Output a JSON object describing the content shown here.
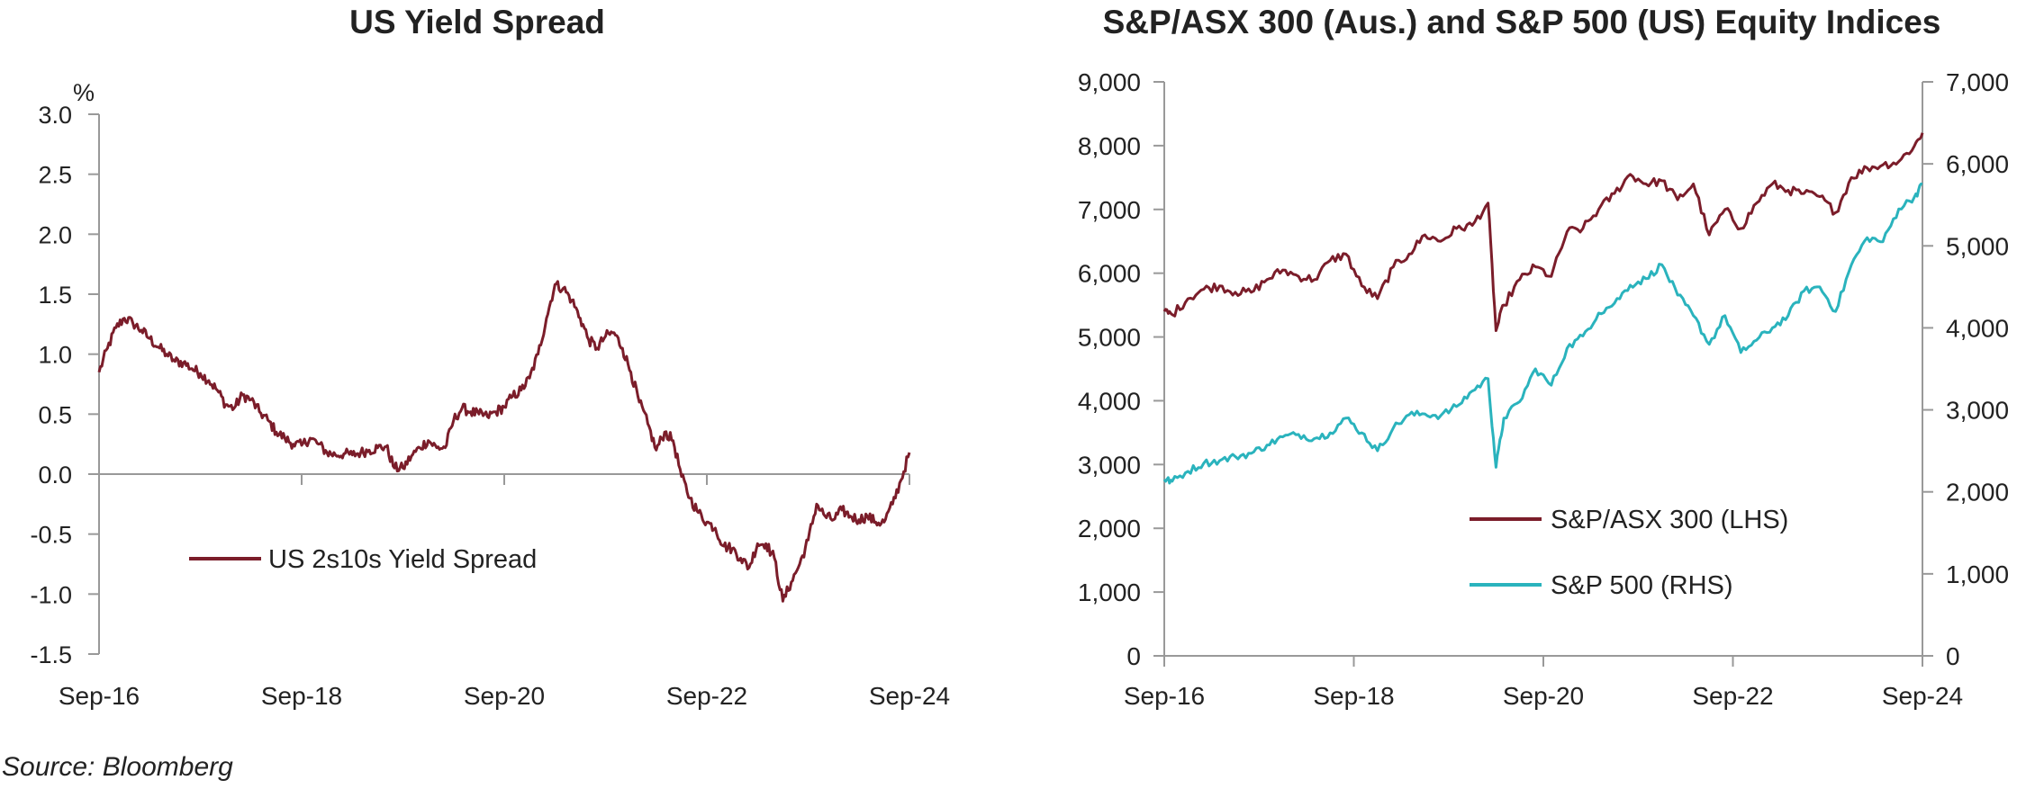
{
  "source": "Source: Bloomberg",
  "chart_data": [
    {
      "type": "line",
      "title": "US Yield Spread",
      "unit_label": "%",
      "xlabel": "",
      "ylabel": "",
      "x_ticks": [
        "Sep-16",
        "Sep-18",
        "Sep-20",
        "Sep-22",
        "Sep-24"
      ],
      "y_ticks": [
        "3.0",
        "2.5",
        "2.0",
        "1.5",
        "1.0",
        "0.5",
        "0.0",
        "-0.5",
        "-1.0",
        "-1.5"
      ],
      "xlim": [
        "2016-09",
        "2024-09"
      ],
      "ylim": [
        -1.5,
        3.0
      ],
      "grid": false,
      "legend_position": "center-left",
      "colors": {
        "spread": "#7b1d2a"
      },
      "series": [
        {
          "name": "US 2s10s Yield Spread",
          "x": [
            "2016-09",
            "2016-10",
            "2016-11",
            "2016-12",
            "2017-01",
            "2017-02",
            "2017-03",
            "2017-04",
            "2017-05",
            "2017-06",
            "2017-07",
            "2017-08",
            "2017-09",
            "2017-10",
            "2017-11",
            "2017-12",
            "2018-01",
            "2018-02",
            "2018-03",
            "2018-04",
            "2018-05",
            "2018-06",
            "2018-07",
            "2018-08",
            "2018-09",
            "2018-10",
            "2018-11",
            "2018-12",
            "2019-01",
            "2019-02",
            "2019-03",
            "2019-04",
            "2019-05",
            "2019-06",
            "2019-07",
            "2019-08",
            "2019-09",
            "2019-10",
            "2019-11",
            "2019-12",
            "2020-01",
            "2020-02",
            "2020-03",
            "2020-04",
            "2020-05",
            "2020-06",
            "2020-07",
            "2020-08",
            "2020-09",
            "2020-10",
            "2020-11",
            "2020-12",
            "2021-01",
            "2021-02",
            "2021-03",
            "2021-04",
            "2021-05",
            "2021-06",
            "2021-07",
            "2021-08",
            "2021-09",
            "2021-10",
            "2021-11",
            "2021-12",
            "2022-01",
            "2022-02",
            "2022-03",
            "2022-04",
            "2022-05",
            "2022-06",
            "2022-07",
            "2022-08",
            "2022-09",
            "2022-10",
            "2022-11",
            "2022-12",
            "2023-01",
            "2023-02",
            "2023-03",
            "2023-04",
            "2023-05",
            "2023-06",
            "2023-07",
            "2023-08",
            "2023-09",
            "2023-10",
            "2023-11",
            "2023-12",
            "2024-01",
            "2024-02",
            "2024-03",
            "2024-04",
            "2024-05",
            "2024-06",
            "2024-07",
            "2024-08",
            "2024-09"
          ],
          "values": [
            0.85,
            1.05,
            1.22,
            1.3,
            1.26,
            1.2,
            1.13,
            1.06,
            1.0,
            0.94,
            0.93,
            0.88,
            0.84,
            0.78,
            0.7,
            0.58,
            0.55,
            0.66,
            0.62,
            0.52,
            0.45,
            0.35,
            0.3,
            0.25,
            0.24,
            0.3,
            0.25,
            0.18,
            0.16,
            0.17,
            0.16,
            0.18,
            0.2,
            0.22,
            0.23,
            0.05,
            0.05,
            0.15,
            0.22,
            0.28,
            0.22,
            0.22,
            0.45,
            0.55,
            0.52,
            0.5,
            0.48,
            0.52,
            0.56,
            0.65,
            0.7,
            0.8,
            1.0,
            1.3,
            1.58,
            1.55,
            1.45,
            1.3,
            1.12,
            1.05,
            1.15,
            1.18,
            1.05,
            0.85,
            0.6,
            0.42,
            0.2,
            0.35,
            0.28,
            -0.02,
            -0.2,
            -0.32,
            -0.4,
            -0.45,
            -0.6,
            -0.62,
            -0.7,
            -0.78,
            -0.58,
            -0.58,
            -0.7,
            -1.06,
            -0.9,
            -0.75,
            -0.55,
            -0.25,
            -0.35,
            -0.38,
            -0.3,
            -0.35,
            -0.38,
            -0.35,
            -0.4,
            -0.4,
            -0.25,
            -0.05,
            0.18
          ]
        }
      ]
    },
    {
      "type": "line",
      "title": "S&P/ASX 300 (Aus.) and S&P 500 (US) Equity Indices",
      "xlabel": "",
      "ylabel": "",
      "x_ticks": [
        "Sep-16",
        "Sep-18",
        "Sep-20",
        "Sep-22",
        "Sep-24"
      ],
      "y_ticks_left": [
        "9,000",
        "8,000",
        "7,000",
        "6,000",
        "5,000",
        "4,000",
        "3,000",
        "2,000",
        "1,000",
        "0"
      ],
      "y_ticks_right": [
        "7,000",
        "6,000",
        "5,000",
        "4,000",
        "3,000",
        "2,000",
        "1,000",
        "0"
      ],
      "xlim": [
        "2016-09",
        "2024-09"
      ],
      "ylim_left": [
        0,
        9000
      ],
      "ylim_right": [
        0,
        7000
      ],
      "grid": false,
      "legend_position": "bottom-right",
      "colors": {
        "asx": "#7b1d2a",
        "spx": "#2ab3bd"
      },
      "series": [
        {
          "name": "S&P/ASX 300 (LHS)",
          "axis": "left",
          "x": [
            "2016-09",
            "2016-10",
            "2016-12",
            "2017-02",
            "2017-04",
            "2017-06",
            "2017-08",
            "2017-10",
            "2017-12",
            "2018-02",
            "2018-04",
            "2018-06",
            "2018-08",
            "2018-10",
            "2018-12",
            "2019-02",
            "2019-04",
            "2019-06",
            "2019-08",
            "2019-10",
            "2019-12",
            "2020-02",
            "2020-03",
            "2020-04",
            "2020-06",
            "2020-08",
            "2020-10",
            "2020-12",
            "2021-02",
            "2021-04",
            "2021-06",
            "2021-08",
            "2021-10",
            "2021-12",
            "2022-02",
            "2022-04",
            "2022-06",
            "2022-08",
            "2022-10",
            "2022-12",
            "2023-02",
            "2023-04",
            "2023-06",
            "2023-08",
            "2023-10",
            "2023-12",
            "2024-02",
            "2024-04",
            "2024-06",
            "2024-08",
            "2024-09"
          ],
          "values": [
            5400,
            5350,
            5600,
            5750,
            5800,
            5700,
            5700,
            5900,
            6050,
            5950,
            5900,
            6200,
            6300,
            5800,
            5600,
            6100,
            6300,
            6600,
            6500,
            6700,
            6750,
            7100,
            5100,
            5500,
            5900,
            6100,
            5950,
            6650,
            6700,
            7000,
            7250,
            7550,
            7400,
            7450,
            7150,
            7400,
            6600,
            7000,
            6700,
            7100,
            7400,
            7300,
            7250,
            7200,
            6950,
            7500,
            7650,
            7700,
            7750,
            8000,
            8200
          ]
        },
        {
          "name": "S&P 500 (RHS)",
          "axis": "right",
          "x": [
            "2016-09",
            "2016-10",
            "2016-12",
            "2017-02",
            "2017-04",
            "2017-06",
            "2017-08",
            "2017-10",
            "2017-12",
            "2018-02",
            "2018-04",
            "2018-06",
            "2018-08",
            "2018-10",
            "2018-12",
            "2019-02",
            "2019-04",
            "2019-06",
            "2019-08",
            "2019-10",
            "2019-12",
            "2020-02",
            "2020-03",
            "2020-04",
            "2020-06",
            "2020-08",
            "2020-10",
            "2020-12",
            "2021-02",
            "2021-04",
            "2021-06",
            "2021-08",
            "2021-10",
            "2021-12",
            "2022-02",
            "2022-04",
            "2022-06",
            "2022-08",
            "2022-10",
            "2022-12",
            "2023-02",
            "2023-04",
            "2023-06",
            "2023-08",
            "2023-10",
            "2023-12",
            "2024-02",
            "2024-04",
            "2024-06",
            "2024-08",
            "2024-09"
          ],
          "values": [
            2150,
            2130,
            2250,
            2350,
            2380,
            2430,
            2470,
            2570,
            2670,
            2700,
            2650,
            2720,
            2900,
            2720,
            2500,
            2780,
            2940,
            2950,
            2930,
            3040,
            3230,
            3380,
            2300,
            2900,
            3100,
            3500,
            3300,
            3750,
            3900,
            4180,
            4300,
            4520,
            4600,
            4770,
            4400,
            4150,
            3800,
            4150,
            3700,
            3850,
            4000,
            4150,
            4450,
            4500,
            4200,
            4770,
            5100,
            5050,
            5450,
            5600,
            5750
          ]
        }
      ]
    }
  ]
}
